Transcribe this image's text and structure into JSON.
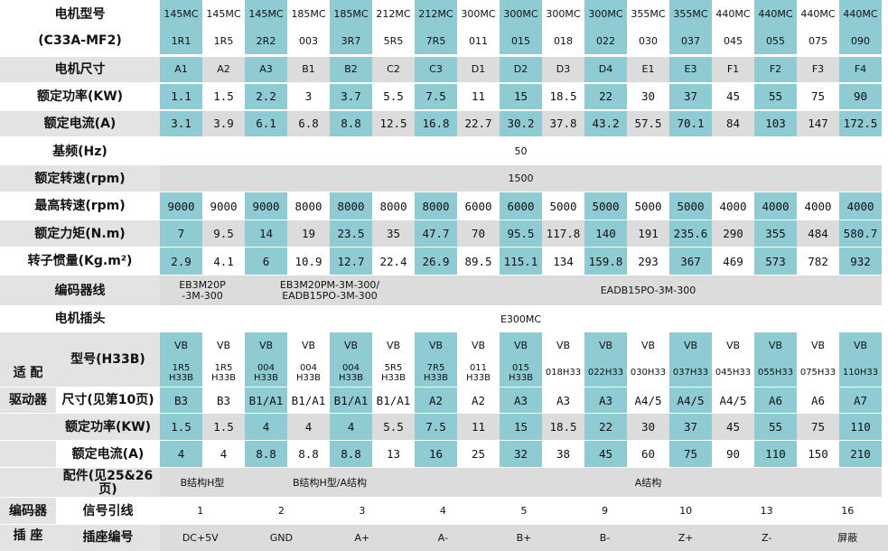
{
  "colors": {
    "teal": "#8ecbd3",
    "gray": "#dcdcdc",
    "white": "#ffffff",
    "label_bg": "#e3e3e3"
  },
  "header": {
    "label_line1": "电机型号",
    "label_line2": "(C33A-MF2)",
    "models": [
      "145MC",
      "145MC",
      "145MC",
      "185MC",
      "185MC",
      "212MC",
      "212MC",
      "300MC",
      "300MC",
      "300MC",
      "300MC",
      "355MC",
      "355MC",
      "440MC",
      "440MC",
      "440MC",
      "440MC"
    ],
    "codes": [
      "1R1",
      "1R5",
      "2R2",
      "003",
      "3R7",
      "5R5",
      "7R5",
      "011",
      "015",
      "018",
      "022",
      "030",
      "037",
      "045",
      "055",
      "075",
      "090"
    ]
  },
  "motor": {
    "size": {
      "label": "电机尺寸",
      "values": [
        "A1",
        "A2",
        "A3",
        "B1",
        "B2",
        "C2",
        "C3",
        "D1",
        "D2",
        "D3",
        "D4",
        "E1",
        "E3",
        "F1",
        "F2",
        "F3",
        "F4"
      ]
    },
    "power": {
      "label": "额定功率(KW)",
      "values": [
        "1.1",
        "1.5",
        "2.2",
        "3",
        "3.7",
        "5.5",
        "7.5",
        "11",
        "15",
        "18.5",
        "22",
        "30",
        "37",
        "45",
        "55",
        "75",
        "90"
      ]
    },
    "current": {
      "label": "额定电流(A)",
      "values": [
        "3.1",
        "3.9",
        "6.1",
        "6.8",
        "8.8",
        "12.5",
        "16.8",
        "22.7",
        "30.2",
        "37.8",
        "43.2",
        "57.5",
        "70.1",
        "84",
        "103",
        "147",
        "172.5"
      ]
    },
    "base_freq": {
      "label": "基频(Hz)",
      "value": "50"
    },
    "rated_speed": {
      "label": "额定转速(rpm)",
      "value": "1500"
    },
    "max_speed": {
      "label": "最高转速(rpm)",
      "values": [
        "9000",
        "9000",
        "9000",
        "8000",
        "8000",
        "8000",
        "8000",
        "6000",
        "6000",
        "5000",
        "5000",
        "5000",
        "5000",
        "4000",
        "4000",
        "4000",
        "4000"
      ]
    },
    "torque": {
      "label": "额定力矩(N.m)",
      "values": [
        "7",
        "9.5",
        "14",
        "19",
        "23.5",
        "35",
        "47.7",
        "70",
        "95.5",
        "117.8",
        "140",
        "191",
        "235.6",
        "290",
        "355",
        "484",
        "580.7"
      ]
    },
    "inertia": {
      "label": "转子惯量(Kg.m²)",
      "values": [
        "2.9",
        "4.1",
        "6",
        "10.9",
        "12.7",
        "22.4",
        "26.9",
        "89.5",
        "115.1",
        "134",
        "159.8",
        "293",
        "367",
        "469",
        "573",
        "782",
        "932"
      ]
    },
    "encoder_cable": {
      "label": "编码器线",
      "groups": [
        "EB3M20P\n-3M-300",
        "EB3M20PM-3M-300/\nEADB15PO-3M-300",
        "EADB15PO-3M-300"
      ]
    },
    "plug": {
      "label": "电机插头",
      "value": "E300MC"
    }
  },
  "drive": {
    "group_label_line1": "适  配",
    "group_label_line2": "驱动器",
    "model": {
      "label": "型号(H33B)",
      "prefix": [
        "VB",
        "VB",
        "VB",
        "VB",
        "VB",
        "VB",
        "VB",
        "VB",
        "VB",
        "VB",
        "VB",
        "VB",
        "VB",
        "VB",
        "VB",
        "VB",
        "VB"
      ],
      "suffix": [
        "1R5\nH33B",
        "1R5\nH33B",
        "004\nH33B",
        "004\nH33B",
        "004\nH33B",
        "5R5\nH33B",
        "7R5\nH33B",
        "011\nH33B",
        "015\nH33B",
        "018H33",
        "022H33",
        "030H33",
        "037H33",
        "045H33",
        "055H33",
        "075H33",
        "110H33"
      ]
    },
    "size": {
      "label": "尺寸(见第10页)",
      "values": [
        "B3",
        "B3",
        "B1/A1",
        "B1/A1",
        "B1/A1",
        "B1/A1",
        "A2",
        "A2",
        "A3",
        "A3",
        "A3",
        "A4/5",
        "A4/5",
        "A4/5",
        "A6",
        "A6",
        "A7"
      ]
    },
    "power": {
      "label": "额定功率(KW)",
      "values": [
        "1.5",
        "1.5",
        "4",
        "4",
        "4",
        "5.5",
        "7.5",
        "11",
        "15",
        "18.5",
        "22",
        "30",
        "37",
        "45",
        "55",
        "75",
        "110"
      ]
    },
    "current": {
      "label": "额定电流(A)",
      "values": [
        "4",
        "4",
        "8.8",
        "8.8",
        "8.8",
        "13",
        "16",
        "25",
        "32",
        "38",
        "45",
        "60",
        "75",
        "90",
        "110",
        "150",
        "210"
      ]
    },
    "accessory": {
      "label": "配件(见25&26页)",
      "groups": [
        "B结构H型",
        "B结构H型/A结构",
        "A结构"
      ]
    }
  },
  "encoder": {
    "group_label_line1": "编码器",
    "group_label_line2": "插    座",
    "signal": {
      "label": "信号引线",
      "values": [
        "1",
        "2",
        "3",
        "4",
        "5",
        "9",
        "10",
        "13",
        "16"
      ]
    },
    "pin": {
      "label": "插座编号",
      "values": [
        "DC+5V",
        "GND",
        "A+",
        "A-",
        "B+",
        "B-",
        "Z+",
        "Z-",
        "屏蔽"
      ]
    }
  }
}
